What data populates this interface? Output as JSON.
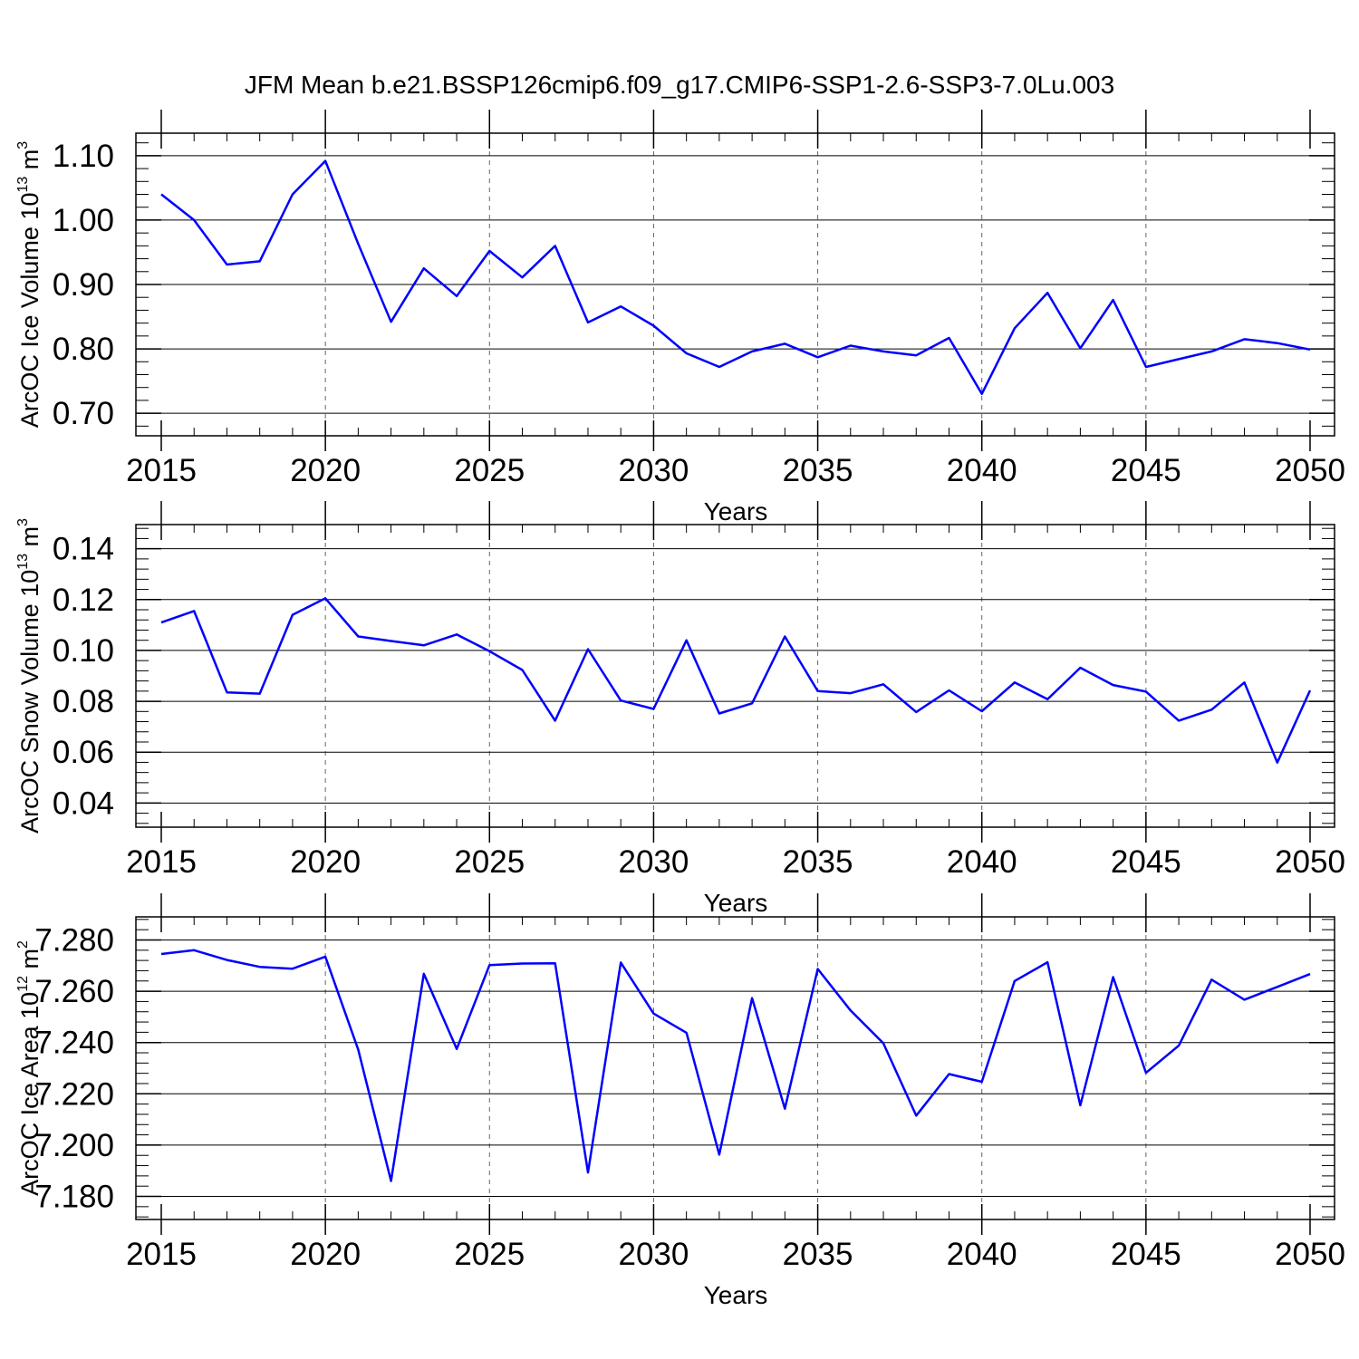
{
  "title": "JFM Mean b.e21.BSSP126cmip6.f09_g17.CMIP6-SSP1-2.6-SSP3-7.0Lu.003",
  "chart_data": [
    {
      "type": "line",
      "ylabel": {
        "text": "ArcOC Ice Volume 10",
        "exp": "13",
        "unit": " m",
        "unit_exp": "3"
      },
      "xlabel": "Years",
      "xlim": [
        2015,
        2050
      ],
      "ylim": [
        0.665,
        1.135
      ],
      "yticks": [
        0.7,
        0.8,
        0.9,
        1.0,
        1.1
      ],
      "ytick_labels": [
        "0.70",
        "0.80",
        "0.90",
        "1.00",
        "1.10"
      ],
      "xticks": [
        2015,
        2020,
        2025,
        2030,
        2035,
        2040,
        2045,
        2050
      ],
      "xtick_labels": [
        "2015",
        "2020",
        "2025",
        "2030",
        "2035",
        "2040",
        "2045",
        "2050"
      ],
      "grid": "vertical dashed at major x ticks",
      "color": "#0000ff",
      "x": [
        2015,
        2016,
        2017,
        2018,
        2019,
        2020,
        2021,
        2022,
        2023,
        2024,
        2025,
        2026,
        2027,
        2028,
        2029,
        2030,
        2031,
        2032,
        2033,
        2034,
        2035,
        2036,
        2037,
        2038,
        2039,
        2040,
        2041,
        2042,
        2043,
        2044,
        2045,
        2046,
        2047,
        2048,
        2049,
        2050
      ],
      "values": [
        1.04,
        1.0,
        0.931,
        0.936,
        1.04,
        1.092,
        0.963,
        0.842,
        0.925,
        0.882,
        0.952,
        0.911,
        0.96,
        0.841,
        0.866,
        0.836,
        0.793,
        0.772,
        0.796,
        0.808,
        0.787,
        0.805,
        0.796,
        0.79,
        0.817,
        0.73,
        0.832,
        0.887,
        0.801,
        0.876,
        0.772,
        0.784,
        0.796,
        0.815,
        0.809,
        0.799
      ]
    },
    {
      "type": "line",
      "ylabel": {
        "text": "ArcOC Snow Volume 10",
        "exp": "13",
        "unit": " m",
        "unit_exp": "3"
      },
      "xlabel": "Years",
      "xlim": [
        2015,
        2050
      ],
      "ylim": [
        0.0305,
        0.1495
      ],
      "yticks": [
        0.04,
        0.06,
        0.08,
        0.1,
        0.12,
        0.14
      ],
      "ytick_labels": [
        "0.04",
        "0.06",
        "0.08",
        "0.10",
        "0.12",
        "0.14"
      ],
      "xticks": [
        2015,
        2020,
        2025,
        2030,
        2035,
        2040,
        2045,
        2050
      ],
      "xtick_labels": [
        "2015",
        "2020",
        "2025",
        "2030",
        "2035",
        "2040",
        "2045",
        "2050"
      ],
      "grid": "vertical dashed at major x ticks",
      "color": "#0000ff",
      "x": [
        2015,
        2016,
        2017,
        2018,
        2019,
        2020,
        2021,
        2022,
        2023,
        2024,
        2025,
        2026,
        2027,
        2028,
        2029,
        2030,
        2031,
        2032,
        2033,
        2034,
        2035,
        2036,
        2037,
        2038,
        2039,
        2040,
        2041,
        2042,
        2043,
        2044,
        2045,
        2046,
        2047,
        2048,
        2049,
        2050
      ],
      "values": [
        0.111,
        0.1155,
        0.0835,
        0.083,
        0.114,
        0.1205,
        0.1055,
        0.1037,
        0.102,
        0.1063,
        0.0997,
        0.0923,
        0.0724,
        0.1005,
        0.0803,
        0.077,
        0.104,
        0.0752,
        0.0792,
        0.1055,
        0.084,
        0.0832,
        0.0867,
        0.0758,
        0.0843,
        0.0761,
        0.0874,
        0.0808,
        0.0932,
        0.0864,
        0.0838,
        0.0724,
        0.0767,
        0.0874,
        0.0559,
        0.0843
      ]
    },
    {
      "type": "line",
      "ylabel": {
        "text": "ArcOC Ice Area 10",
        "exp": "12",
        "unit": " m",
        "unit_exp": "2"
      },
      "xlabel": "Years",
      "xlim": [
        2015,
        2050
      ],
      "ylim": [
        7.171,
        7.289
      ],
      "yticks": [
        7.18,
        7.2,
        7.22,
        7.24,
        7.26,
        7.28
      ],
      "ytick_labels": [
        "7.180",
        "7.200",
        "7.220",
        "7.240",
        "7.260",
        "7.280"
      ],
      "xticks": [
        2015,
        2020,
        2025,
        2030,
        2035,
        2040,
        2045,
        2050
      ],
      "xtick_labels": [
        "2015",
        "2020",
        "2025",
        "2030",
        "2035",
        "2040",
        "2045",
        "2050"
      ],
      "grid": "vertical dashed at major x ticks",
      "color": "#0000ff",
      "x": [
        2015,
        2016,
        2017,
        2018,
        2019,
        2020,
        2021,
        2022,
        2023,
        2024,
        2025,
        2026,
        2027,
        2028,
        2029,
        2030,
        2031,
        2032,
        2033,
        2034,
        2035,
        2036,
        2037,
        2038,
        2039,
        2040,
        2041,
        2042,
        2043,
        2044,
        2045,
        2046,
        2047,
        2048,
        2049,
        2050
      ],
      "values": [
        7.2745,
        7.276,
        7.2722,
        7.2695,
        7.2688,
        7.2735,
        7.2372,
        7.186,
        7.2668,
        7.2375,
        7.2702,
        7.2708,
        7.2709,
        7.1893,
        7.2712,
        7.2513,
        7.2438,
        7.1963,
        7.2573,
        7.2142,
        7.2687,
        7.2525,
        7.2397,
        7.2115,
        7.2277,
        7.2247,
        7.264,
        7.2713,
        7.2155,
        7.2655,
        7.2282,
        7.2388,
        7.2645,
        7.2567,
        7.2617,
        7.2667
      ]
    }
  ]
}
